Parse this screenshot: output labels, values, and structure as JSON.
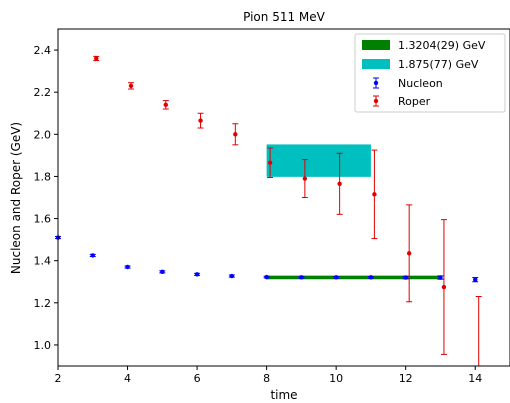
{
  "chart_data": {
    "type": "scatter",
    "title": "Pion 511 MeV",
    "xlabel": "time",
    "ylabel": "Nucleon and Roper (GeV)",
    "xlim": [
      2,
      15
    ],
    "ylim": [
      0.9,
      2.5
    ],
    "xticks": [
      2,
      4,
      6,
      8,
      10,
      12,
      14
    ],
    "yticks": [
      1.0,
      1.2,
      1.4,
      1.6,
      1.8,
      2.0,
      2.2,
      2.4
    ],
    "xtick_labels": [
      "2",
      "4",
      "6",
      "8",
      "10",
      "12",
      "14"
    ],
    "ytick_labels": [
      "1.0",
      "1.2",
      "1.4",
      "1.6",
      "1.8",
      "2.0",
      "2.2",
      "2.4"
    ],
    "grid": false,
    "legend_position": "top-right",
    "bands": [
      {
        "name": "1.3204(29) GeV",
        "color": "#008000",
        "x": [
          8,
          13
        ],
        "y_low": 1.3175,
        "y_high": 1.3233
      },
      {
        "name": "1.875(77) GeV",
        "color": "#00bfbf",
        "x": [
          8,
          11
        ],
        "y_low": 1.798,
        "y_high": 1.952
      }
    ],
    "series": [
      {
        "name": "Nucleon",
        "color": "#0000ff",
        "x": [
          2,
          3,
          4,
          5,
          6,
          7,
          8,
          9,
          10,
          11,
          12,
          13,
          14
        ],
        "y": [
          1.51,
          1.425,
          1.37,
          1.347,
          1.335,
          1.327,
          1.322,
          1.321,
          1.321,
          1.321,
          1.32,
          1.32,
          1.31
        ],
        "err": [
          0.005,
          0.005,
          0.005,
          0.005,
          0.005,
          0.005,
          0.004,
          0.004,
          0.004,
          0.004,
          0.006,
          0.008,
          0.01
        ]
      },
      {
        "name": "Roper",
        "color": "#e00000",
        "x": [
          3.1,
          4.1,
          5.1,
          6.1,
          7.1,
          8.1,
          9.1,
          10.1,
          11.1,
          12.1,
          13.1,
          14.1
        ],
        "y": [
          2.36,
          2.23,
          2.14,
          2.065,
          2.0,
          1.865,
          1.79,
          1.765,
          1.715,
          1.435,
          1.275,
          0.87
        ],
        "err": [
          0.01,
          0.015,
          0.02,
          0.035,
          0.05,
          0.07,
          0.09,
          0.145,
          0.21,
          0.23,
          0.32,
          0.36
        ]
      }
    ]
  }
}
